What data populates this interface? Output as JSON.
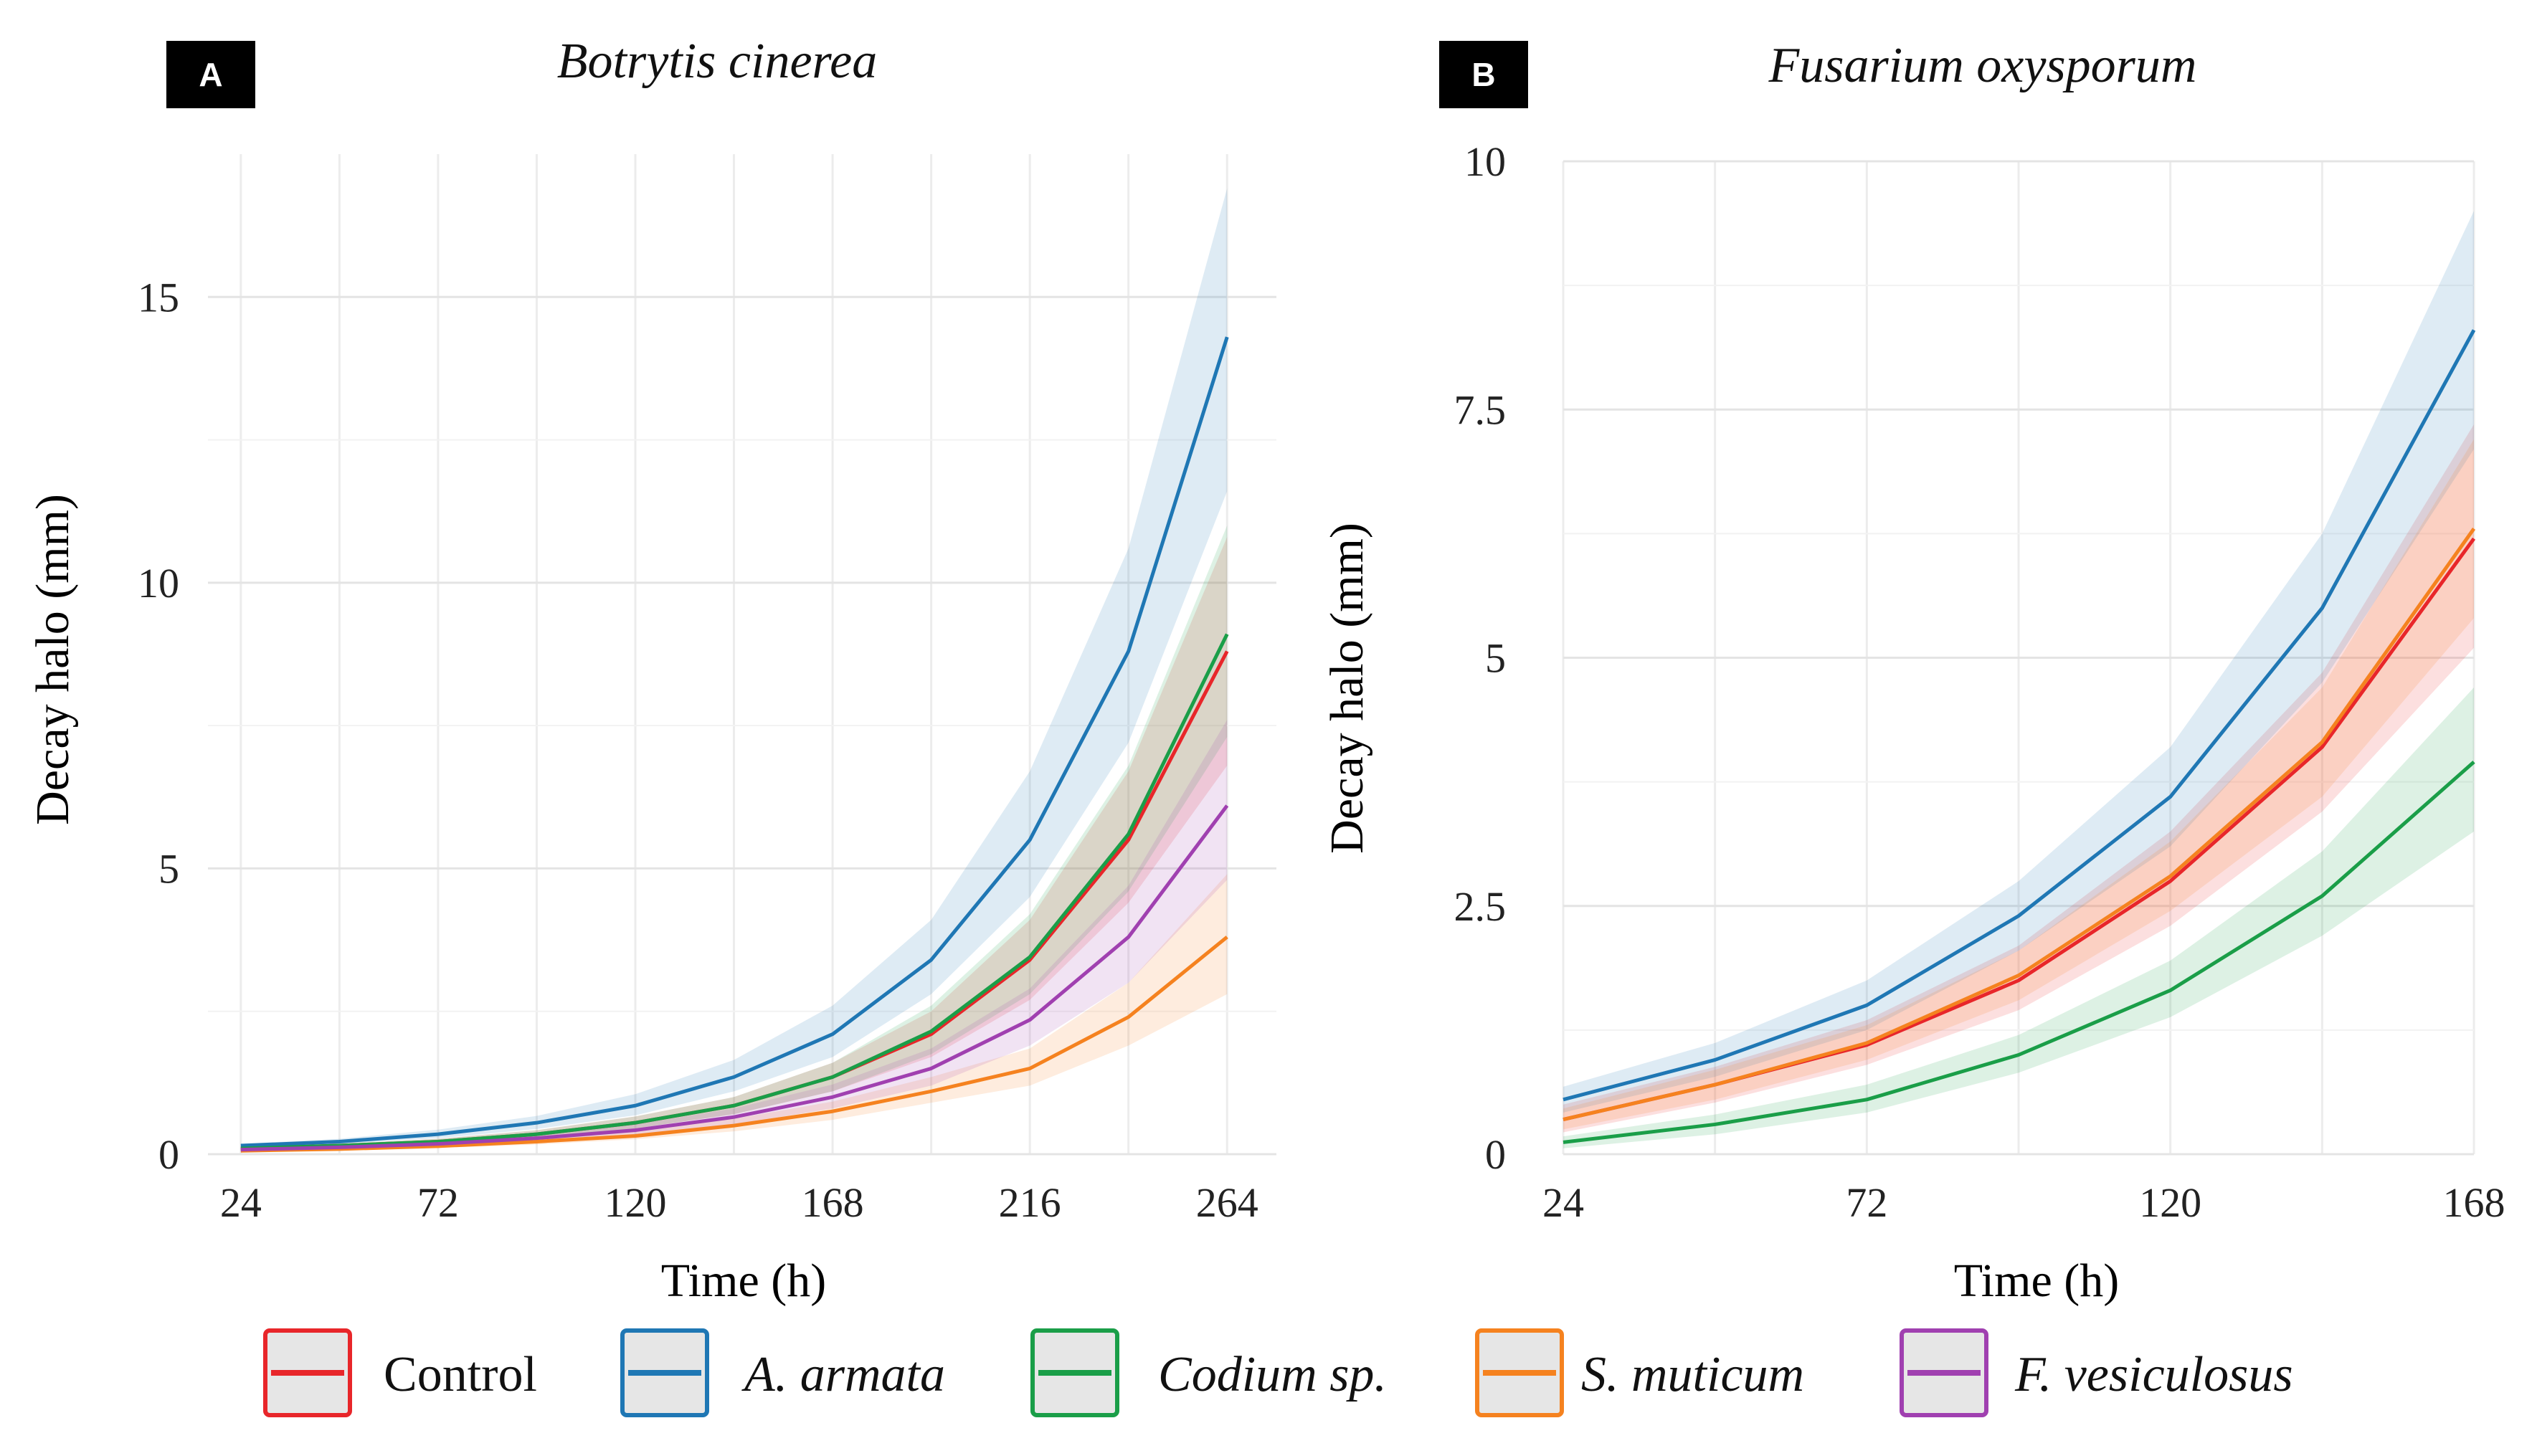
{
  "chart_data": [
    {
      "type": "line",
      "panel_label": "A",
      "title": "Botrytis cinerea",
      "xlabel": "Time (h)",
      "ylabel": "Decay halo (mm)",
      "x": [
        24,
        48,
        72,
        96,
        120,
        144,
        168,
        192,
        216,
        240,
        264
      ],
      "xticks": [
        "24",
        "72",
        "120",
        "168",
        "216",
        "264"
      ],
      "xlim": [
        16,
        276
      ],
      "ylim": [
        0,
        17.5
      ],
      "yticks": [
        "0",
        "5",
        "10",
        "15"
      ],
      "grid": true,
      "series": [
        {
          "name": "Control",
          "color": "#e8262a",
          "values": [
            0.1,
            0.15,
            0.22,
            0.35,
            0.55,
            0.85,
            1.35,
            2.1,
            3.4,
            5.5,
            8.8
          ],
          "lower": [
            0.08,
            0.12,
            0.18,
            0.28,
            0.45,
            0.7,
            1.1,
            1.7,
            2.7,
            4.4,
            6.8
          ],
          "upper": [
            0.12,
            0.18,
            0.27,
            0.42,
            0.66,
            1.0,
            1.6,
            2.5,
            4.1,
            6.7,
            10.8
          ]
        },
        {
          "name": "A. armata",
          "color": "#1f77b4",
          "values": [
            0.15,
            0.22,
            0.35,
            0.55,
            0.85,
            1.35,
            2.1,
            3.4,
            5.5,
            8.8,
            14.3
          ],
          "lower": [
            0.12,
            0.18,
            0.28,
            0.44,
            0.68,
            1.1,
            1.7,
            2.8,
            4.5,
            7.2,
            11.6
          ],
          "upper": [
            0.18,
            0.27,
            0.43,
            0.67,
            1.05,
            1.65,
            2.6,
            4.1,
            6.7,
            10.6,
            16.9
          ]
        },
        {
          "name": "Codium sp.",
          "color": "#1a9e48",
          "values": [
            0.1,
            0.15,
            0.22,
            0.35,
            0.55,
            0.85,
            1.35,
            2.15,
            3.45,
            5.6,
            9.1
          ],
          "lower": [
            0.08,
            0.12,
            0.18,
            0.28,
            0.45,
            0.7,
            1.1,
            1.75,
            2.8,
            4.6,
            7.3
          ],
          "upper": [
            0.12,
            0.18,
            0.27,
            0.42,
            0.66,
            1.0,
            1.6,
            2.6,
            4.2,
            6.8,
            11.0
          ]
        },
        {
          "name": "S. muticum",
          "color": "#f5821f",
          "values": [
            0.06,
            0.09,
            0.14,
            0.22,
            0.32,
            0.5,
            0.75,
            1.1,
            1.5,
            2.4,
            3.8
          ],
          "lower": [
            0.05,
            0.07,
            0.11,
            0.17,
            0.26,
            0.4,
            0.6,
            0.9,
            1.2,
            1.9,
            2.8
          ],
          "upper": [
            0.07,
            0.11,
            0.17,
            0.27,
            0.4,
            0.62,
            0.92,
            1.35,
            1.85,
            3.0,
            4.9
          ]
        },
        {
          "name": "F. vesiculosus",
          "color": "#a040b0",
          "values": [
            0.08,
            0.12,
            0.18,
            0.28,
            0.42,
            0.65,
            1.0,
            1.5,
            2.35,
            3.8,
            6.1
          ],
          "lower": [
            0.06,
            0.09,
            0.14,
            0.22,
            0.34,
            0.52,
            0.8,
            1.2,
            1.9,
            3.0,
            4.8
          ],
          "upper": [
            0.1,
            0.15,
            0.22,
            0.34,
            0.52,
            0.8,
            1.22,
            1.85,
            2.9,
            4.7,
            7.6
          ]
        }
      ]
    },
    {
      "type": "line",
      "panel_label": "B",
      "title": "Fusarium oxysporum",
      "xlabel": "Time (h)",
      "ylabel": "Decay halo (mm)",
      "x": [
        24,
        48,
        72,
        96,
        120,
        144,
        168
      ],
      "xticks": [
        "24",
        "72",
        "120",
        "168"
      ],
      "xlim": [
        24,
        168
      ],
      "ylim": [
        0,
        10
      ],
      "yticks": [
        "0",
        "2.5",
        "5",
        "7.5",
        "10"
      ],
      "grid": true,
      "series": [
        {
          "name": "Control",
          "color": "#e8262a",
          "values": [
            0.35,
            0.7,
            1.1,
            1.75,
            2.75,
            4.1,
            6.2
          ],
          "lower": [
            0.22,
            0.52,
            0.9,
            1.45,
            2.3,
            3.45,
            5.1
          ],
          "upper": [
            0.5,
            0.88,
            1.35,
            2.1,
            3.25,
            4.85,
            7.35
          ]
        },
        {
          "name": "A. armata",
          "color": "#1f77b4",
          "values": [
            0.55,
            0.95,
            1.5,
            2.4,
            3.6,
            5.5,
            8.3
          ],
          "lower": [
            0.42,
            0.78,
            1.25,
            2.05,
            3.1,
            4.75,
            7.1
          ],
          "upper": [
            0.68,
            1.12,
            1.75,
            2.75,
            4.1,
            6.25,
            9.5
          ]
        },
        {
          "name": "Codium sp.",
          "color": "#1a9e48",
          "values": [
            0.12,
            0.3,
            0.55,
            1.0,
            1.65,
            2.6,
            3.95
          ],
          "lower": [
            0.06,
            0.2,
            0.42,
            0.82,
            1.38,
            2.2,
            3.25
          ],
          "upper": [
            0.18,
            0.4,
            0.7,
            1.2,
            1.95,
            3.05,
            4.7
          ]
        },
        {
          "name": "S. muticum",
          "color": "#f5821f",
          "values": [
            0.35,
            0.7,
            1.12,
            1.8,
            2.8,
            4.15,
            6.3
          ],
          "lower": [
            0.25,
            0.55,
            0.95,
            1.55,
            2.45,
            3.6,
            5.4
          ],
          "upper": [
            0.46,
            0.85,
            1.3,
            2.05,
            3.15,
            4.7,
            7.2
          ]
        }
      ]
    }
  ],
  "legend": [
    {
      "label": "Control",
      "color": "#e8262a",
      "italic": false
    },
    {
      "label": "A. armata",
      "color": "#1f77b4",
      "italic": true
    },
    {
      "label": "Codium sp.",
      "color": "#1a9e48",
      "italic": true
    },
    {
      "label": "S. muticum",
      "color": "#f5821f",
      "italic": true
    },
    {
      "label": "F. vesiculosus",
      "color": "#a040b0",
      "italic": true
    }
  ]
}
